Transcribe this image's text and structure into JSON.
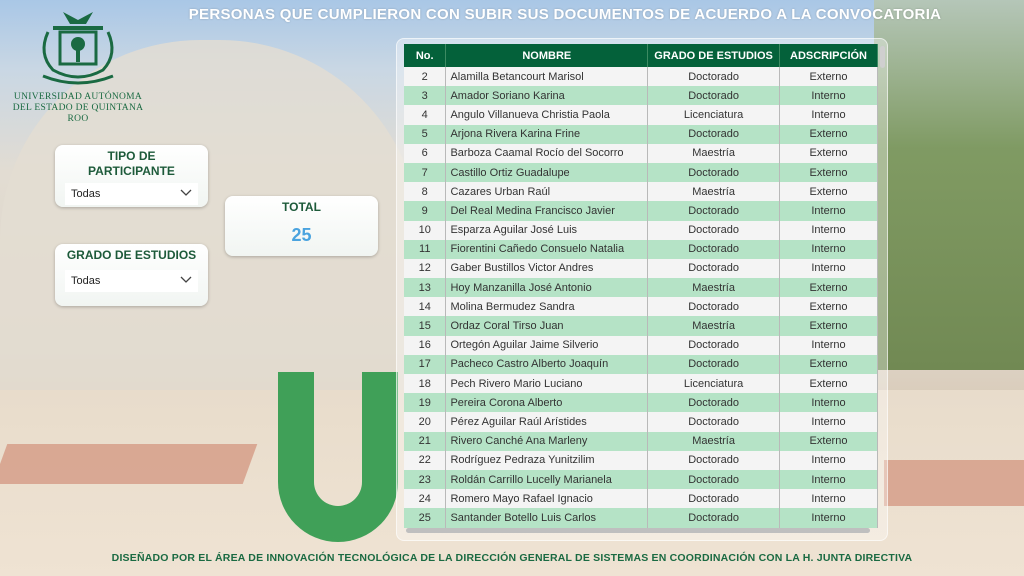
{
  "title": "PERSONAS QUE CUMPLIERON CON SUBIR SUS DOCUMENTOS DE ACUERDO A LA CONVOCATORIA",
  "logo": {
    "line1": "UNIVERSIDAD AUTÓNOMA",
    "line2": "DEL ESTADO DE QUINTANA ROO"
  },
  "filters": {
    "tipo": {
      "label": "TIPO DE PARTICIPANTE",
      "value": "Todas"
    },
    "grado": {
      "label": "GRADO DE ESTUDIOS",
      "value": "Todas"
    }
  },
  "total": {
    "label": "TOTAL",
    "value": "25"
  },
  "table": {
    "headers": [
      "No.",
      "NOMBRE",
      "GRADO DE ESTUDIOS",
      "ADSCRIPCIÓN"
    ],
    "rows": [
      [
        "2",
        "Alamilla Betancourt Marisol",
        "Doctorado",
        "Externo"
      ],
      [
        "3",
        "Amador Soriano Karina",
        "Doctorado",
        "Interno"
      ],
      [
        "4",
        "Angulo Villanueva Christia Paola",
        "Licenciatura",
        "Interno"
      ],
      [
        "5",
        "Arjona Rivera Karina Frine",
        "Doctorado",
        "Externo"
      ],
      [
        "6",
        "Barboza Caamal Rocío del Socorro",
        "Maestría",
        "Externo"
      ],
      [
        "7",
        "Castillo Ortiz Guadalupe",
        "Doctorado",
        "Externo"
      ],
      [
        "8",
        "Cazares Urban Raúl",
        "Maestría",
        "Externo"
      ],
      [
        "9",
        "Del Real Medina Francisco Javier",
        "Doctorado",
        "Interno"
      ],
      [
        "10",
        "Esparza Aguilar José Luis",
        "Doctorado",
        "Interno"
      ],
      [
        "11",
        "Fiorentini Cañedo Consuelo Natalia",
        "Doctorado",
        "Interno"
      ],
      [
        "12",
        "Gaber Bustillos Victor Andres",
        "Doctorado",
        "Interno"
      ],
      [
        "13",
        "Hoy Manzanilla José Antonio",
        "Maestría",
        "Externo"
      ],
      [
        "14",
        "Molina Bermudez Sandra",
        "Doctorado",
        "Externo"
      ],
      [
        "15",
        "Ordaz Coral Tirso Juan",
        "Maestría",
        "Externo"
      ],
      [
        "16",
        "Ortegón Aguilar Jaime Silverio",
        "Doctorado",
        "Interno"
      ],
      [
        "17",
        "Pacheco Castro Alberto Joaquín",
        "Doctorado",
        "Externo"
      ],
      [
        "18",
        "Pech Rivero Mario Luciano",
        "Licenciatura",
        "Externo"
      ],
      [
        "19",
        "Pereira Corona Alberto",
        "Doctorado",
        "Interno"
      ],
      [
        "20",
        "Pérez Aguilar Raúl Arístides",
        "Doctorado",
        "Interno"
      ],
      [
        "21",
        "Rivero Canché Ana Marleny",
        "Maestría",
        "Externo"
      ],
      [
        "22",
        "Rodríguez Pedraza Yunitzilim",
        "Doctorado",
        "Interno"
      ],
      [
        "23",
        "Roldán Carrillo Lucelly Marianela",
        "Doctorado",
        "Interno"
      ],
      [
        "24",
        "Romero Mayo Rafael Ignacio",
        "Doctorado",
        "Interno"
      ],
      [
        "25",
        "Santander Botello Luis Carlos",
        "Doctorado",
        "Interno"
      ]
    ]
  },
  "footer": "DISEÑADO POR EL ÁREA DE INNOVACIÓN TECNOLÓGICA DE LA DIRECCIÓN GENERAL DE SISTEMAS EN COORDINACIÓN CON LA H. JUNTA DIRECTIVA",
  "colors": {
    "header": "#04613a",
    "row_alt": "#b5e3c6",
    "accent": "#4aa3df",
    "brand": "#1a6a42"
  }
}
